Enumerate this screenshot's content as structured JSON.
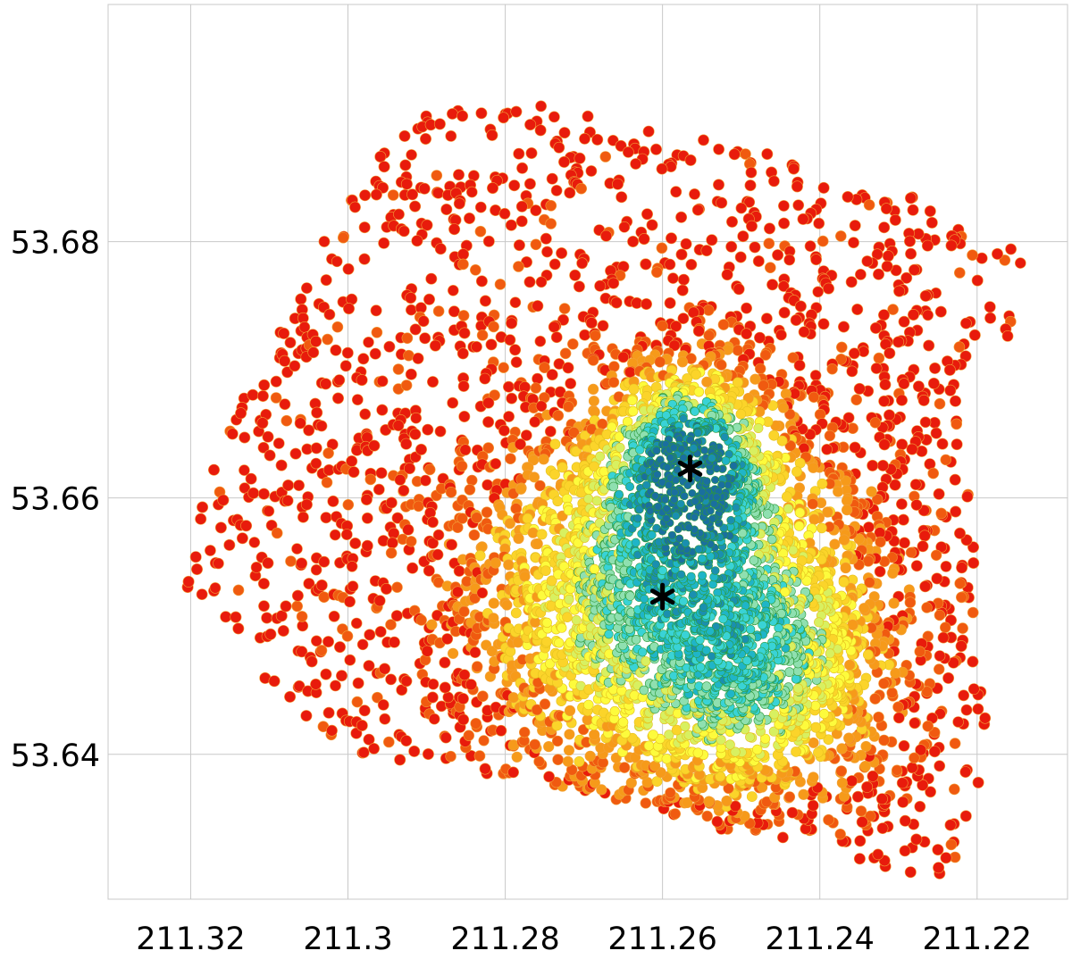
{
  "chart_data": {
    "type": "scatter",
    "title": "",
    "xlabel": "",
    "ylabel": "",
    "x_axis_reversed": true,
    "xlim": [
      211.3305,
      211.2085
    ],
    "ylim": [
      53.6287,
      53.6985
    ],
    "grid": true,
    "x_ticks": [
      211.32,
      211.3,
      211.28,
      211.26,
      211.24,
      211.22
    ],
    "x_tick_labels": [
      "211.32",
      "211.3",
      "211.28",
      "211.26",
      "211.24",
      "211.22"
    ],
    "y_ticks": [
      53.68,
      53.66,
      53.64
    ],
    "y_tick_labels": [
      "53.68",
      "53.66",
      "53.64"
    ],
    "color_scale": [
      "#e81b0c",
      "#f05a10",
      "#f69a1a",
      "#fbd42a",
      "#fdfb3c",
      "#d8f060",
      "#8fe0b0",
      "#39d3d6",
      "#1fb5c8",
      "#1a8fb0",
      "#1a6f9f"
    ],
    "density_field": {
      "description_of_peaks": "Dense core near the upper star marker with a secondary broad overdensity around the lower star marker",
      "core": {
        "x": 211.2565,
        "y": 53.6623
      },
      "secondary": {
        "x": 211.26,
        "y": 53.6523
      }
    },
    "series": [
      {
        "marker": "asterisk",
        "color": "#000000",
        "points": [
          {
            "x": 211.2565,
            "y": 53.6623
          },
          {
            "x": 211.26,
            "y": 53.6523
          }
        ]
      }
    ]
  }
}
